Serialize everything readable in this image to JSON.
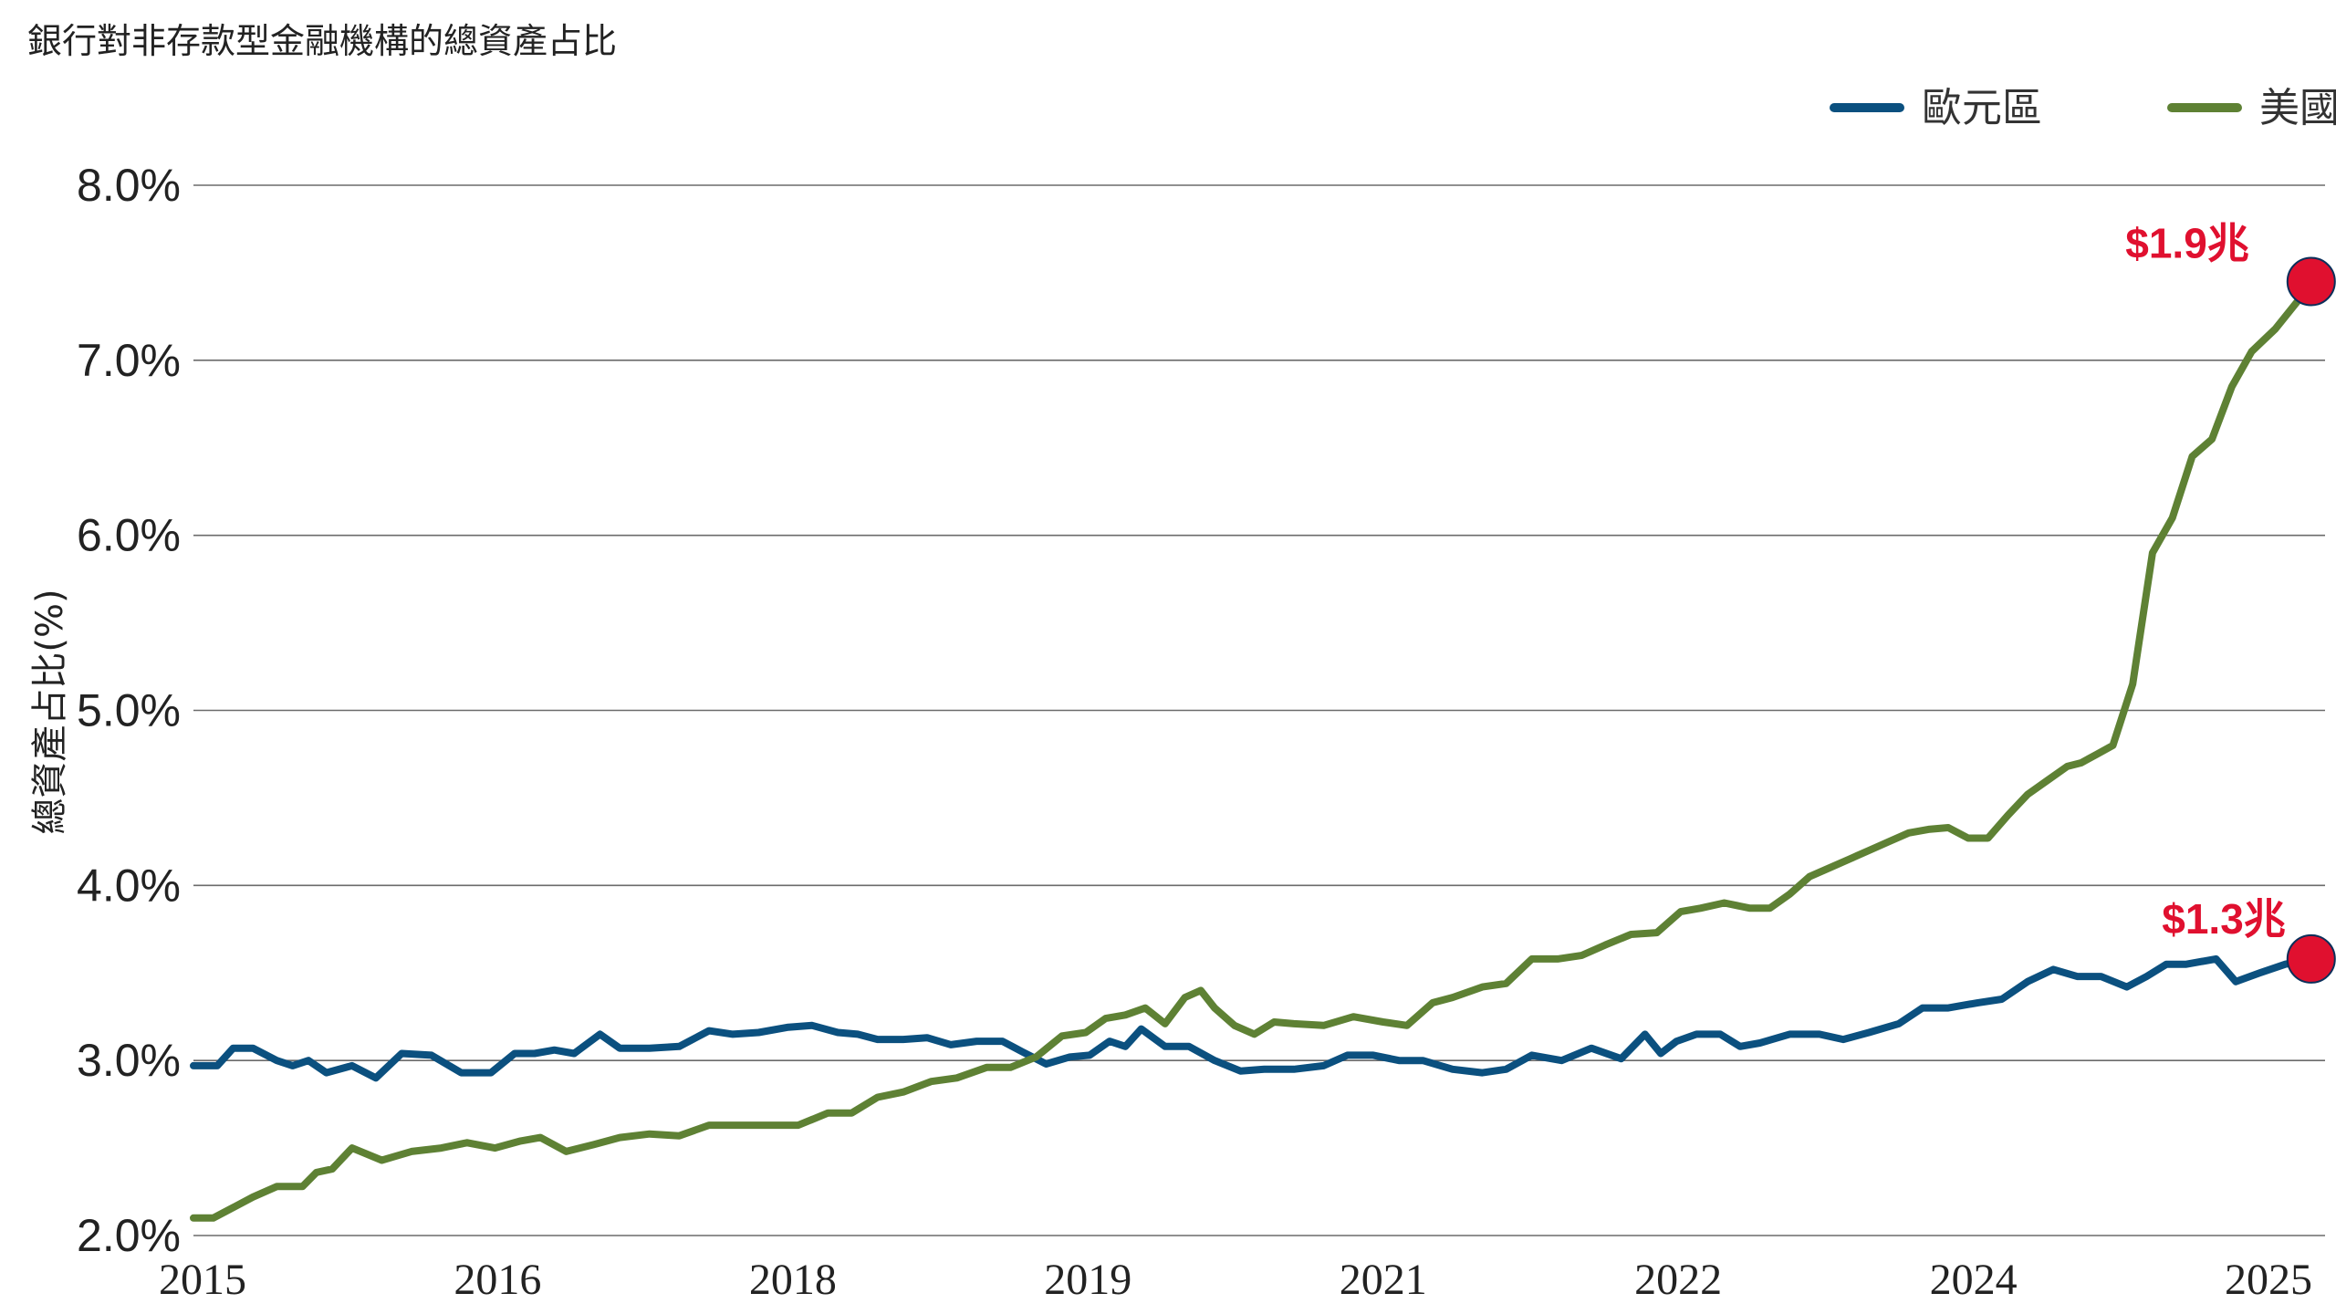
{
  "chart_data": {
    "type": "line",
    "title": "銀行對非存款型金融機構的總資產占比",
    "ylabel": "總資產占比(%)",
    "xlabel": "",
    "ylim": [
      2.0,
      8.0
    ],
    "yticks": [
      "2.0%",
      "3.0%",
      "4.0%",
      "5.0%",
      "6.0%",
      "7.0%",
      "8.0%"
    ],
    "xticks": [
      "2015",
      "2016",
      "2018",
      "2019",
      "2021",
      "2022",
      "2024",
      "2025"
    ],
    "x_range": [
      2015.0,
      2025.75
    ],
    "grid": "horizontal",
    "legend": "top-right",
    "series": [
      {
        "name": "歐元區",
        "color": "#0b507f",
        "end_label": "$1.3兆",
        "x": [
          2015.0,
          2015.12,
          2015.2,
          2015.3,
          2015.42,
          2015.5,
          2015.58,
          2015.67,
          2015.8,
          2015.92,
          2016.05,
          2016.2,
          2016.35,
          2016.5,
          2016.62,
          2016.72,
          2016.82,
          2016.92,
          2017.05,
          2017.15,
          2017.3,
          2017.45,
          2017.6,
          2017.72,
          2017.85,
          2018.0,
          2018.12,
          2018.25,
          2018.35,
          2018.45,
          2018.58,
          2018.7,
          2018.82,
          2018.95,
          2019.08,
          2019.18,
          2019.3,
          2019.42,
          2019.52,
          2019.62,
          2019.7,
          2019.78,
          2019.9,
          2020.02,
          2020.15,
          2020.28,
          2020.4,
          2020.55,
          2020.7,
          2020.82,
          2020.95,
          2021.08,
          2021.2,
          2021.35,
          2021.5,
          2021.62,
          2021.75,
          2021.9,
          2022.05,
          2022.2,
          2022.32,
          2022.4,
          2022.48,
          2022.58,
          2022.7,
          2022.8,
          2022.9,
          2023.05,
          2023.2,
          2023.32,
          2023.45,
          2023.6,
          2023.72,
          2023.85,
          2024.0,
          2024.12,
          2024.25,
          2024.38,
          2024.5,
          2024.62,
          2024.75,
          2024.85,
          2024.95,
          2025.05,
          2025.2,
          2025.3,
          2025.42,
          2025.55,
          2025.68
        ],
        "values": [
          2.97,
          2.97,
          3.07,
          3.07,
          3.0,
          2.97,
          3.0,
          2.93,
          2.97,
          2.9,
          3.04,
          3.03,
          2.93,
          2.93,
          3.04,
          3.04,
          3.06,
          3.04,
          3.15,
          3.07,
          3.07,
          3.08,
          3.17,
          3.15,
          3.16,
          3.19,
          3.2,
          3.16,
          3.15,
          3.12,
          3.12,
          3.13,
          3.09,
          3.11,
          3.11,
          3.05,
          2.98,
          3.02,
          3.03,
          3.11,
          3.08,
          3.18,
          3.08,
          3.08,
          3.0,
          2.94,
          2.95,
          2.95,
          2.97,
          3.03,
          3.03,
          3.0,
          3.0,
          2.95,
          2.93,
          2.95,
          3.03,
          3.0,
          3.07,
          3.01,
          3.15,
          3.04,
          3.11,
          3.15,
          3.15,
          3.08,
          3.1,
          3.15,
          3.15,
          3.12,
          3.16,
          3.21,
          3.3,
          3.3,
          3.33,
          3.35,
          3.45,
          3.52,
          3.48,
          3.48,
          3.42,
          3.48,
          3.55,
          3.55,
          3.58,
          3.45,
          3.5,
          3.55,
          3.58
        ]
      },
      {
        "name": "美國",
        "color": "#5e8134",
        "end_label": "$1.9兆",
        "x": [
          2015.0,
          2015.1,
          2015.2,
          2015.3,
          2015.42,
          2015.55,
          2015.62,
          2015.7,
          2015.8,
          2015.95,
          2016.1,
          2016.25,
          2016.38,
          2016.52,
          2016.65,
          2016.75,
          2016.88,
          2017.02,
          2017.15,
          2017.3,
          2017.45,
          2017.6,
          2017.75,
          2017.9,
          2018.05,
          2018.2,
          2018.32,
          2018.45,
          2018.58,
          2018.72,
          2018.85,
          2019.0,
          2019.12,
          2019.25,
          2019.38,
          2019.5,
          2019.6,
          2019.7,
          2019.8,
          2019.9,
          2020.0,
          2020.08,
          2020.15,
          2020.25,
          2020.35,
          2020.45,
          2020.55,
          2020.7,
          2020.85,
          2021.0,
          2021.12,
          2021.25,
          2021.35,
          2021.5,
          2021.62,
          2021.75,
          2021.88,
          2022.0,
          2022.12,
          2022.25,
          2022.38,
          2022.5,
          2022.6,
          2022.72,
          2022.85,
          2022.95,
          2023.05,
          2023.15,
          2023.25,
          2023.35,
          2023.45,
          2023.55,
          2023.65,
          2023.75,
          2023.85,
          2023.95,
          2024.05,
          2024.15,
          2024.25,
          2024.35,
          2024.45,
          2024.52,
          2024.6,
          2024.68,
          2024.78,
          2024.88,
          2024.98,
          2025.08,
          2025.18,
          2025.28,
          2025.38,
          2025.5,
          2025.62,
          2025.68
        ],
        "values": [
          2.1,
          2.1,
          2.16,
          2.22,
          2.28,
          2.28,
          2.36,
          2.38,
          2.5,
          2.43,
          2.48,
          2.5,
          2.53,
          2.5,
          2.54,
          2.56,
          2.48,
          2.52,
          2.56,
          2.58,
          2.57,
          2.63,
          2.63,
          2.63,
          2.63,
          2.7,
          2.7,
          2.79,
          2.82,
          2.88,
          2.9,
          2.96,
          2.96,
          3.02,
          3.14,
          3.16,
          3.24,
          3.26,
          3.3,
          3.21,
          3.36,
          3.4,
          3.3,
          3.2,
          3.15,
          3.22,
          3.21,
          3.2,
          3.25,
          3.22,
          3.2,
          3.33,
          3.36,
          3.42,
          3.44,
          3.58,
          3.58,
          3.6,
          3.66,
          3.72,
          3.73,
          3.85,
          3.87,
          3.9,
          3.87,
          3.87,
          3.95,
          4.05,
          4.1,
          4.15,
          4.2,
          4.25,
          4.3,
          4.32,
          4.33,
          4.27,
          4.27,
          4.4,
          4.52,
          4.6,
          4.68,
          4.7,
          4.75,
          4.8,
          5.15,
          5.9,
          6.1,
          6.45,
          6.55,
          6.85,
          7.05,
          7.18,
          7.35,
          7.45
        ]
      }
    ]
  }
}
